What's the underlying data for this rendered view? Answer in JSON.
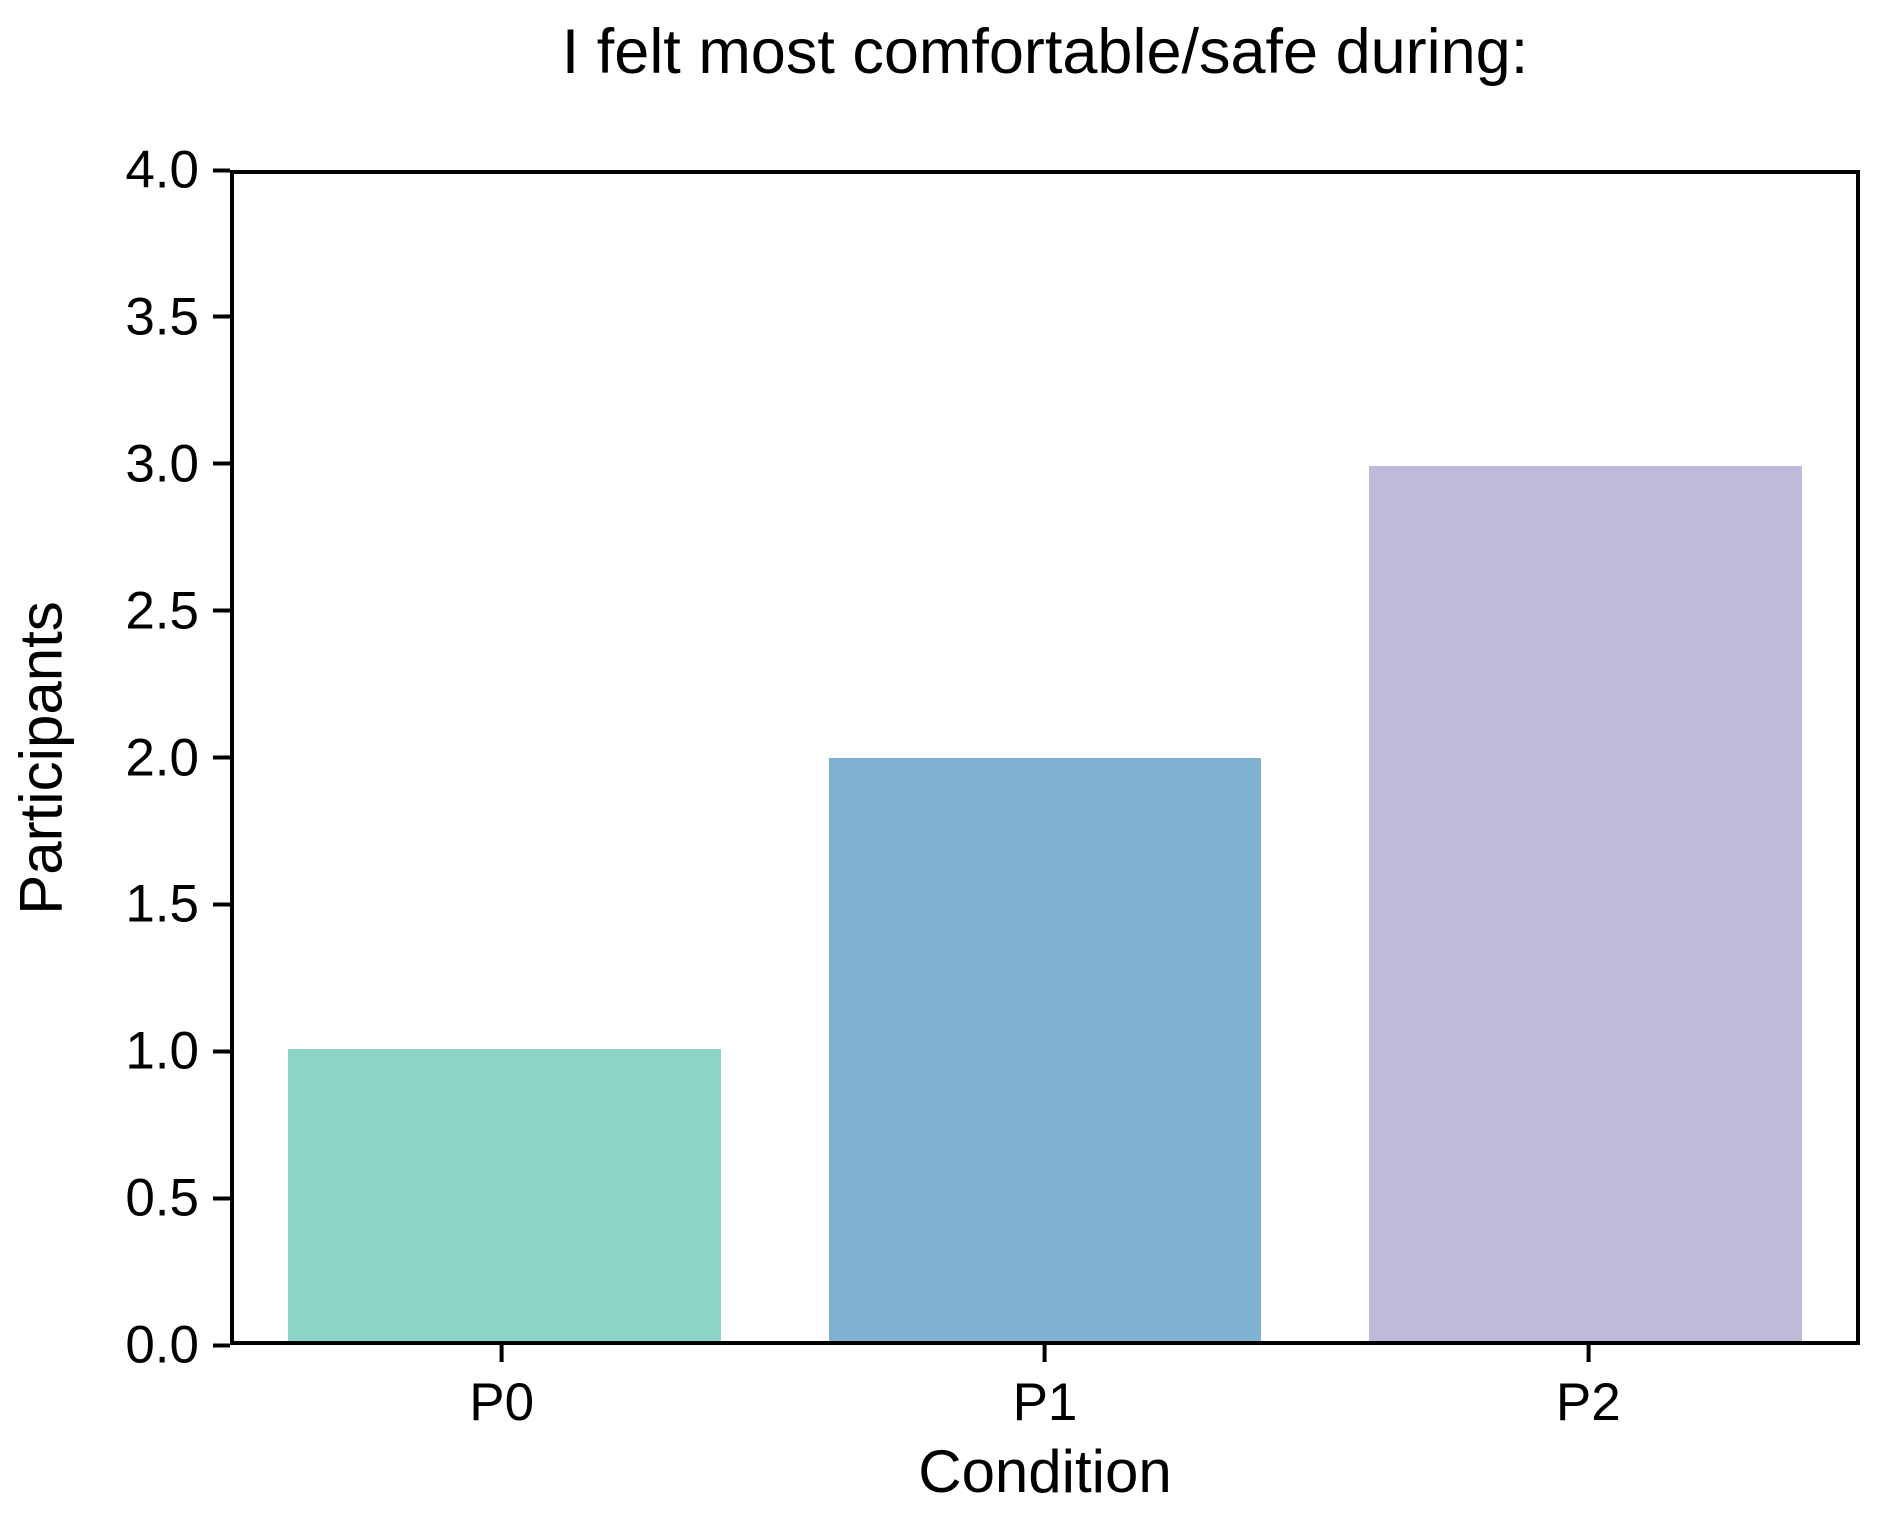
{
  "chart_data": {
    "type": "bar",
    "title": "I felt most comfortable/safe during:",
    "xlabel": "Condition",
    "ylabel": "Participants",
    "categories": [
      "P0",
      "P1",
      "P2"
    ],
    "values": [
      1,
      2,
      3
    ],
    "bar_colors": [
      "#8DD3C7",
      "#80B1D3",
      "#BEBADA"
    ],
    "ylim": [
      0,
      4
    ],
    "yticks": [
      0.0,
      0.5,
      1.0,
      1.5,
      2.0,
      2.5,
      3.0,
      3.5,
      4.0
    ],
    "ytick_labels": [
      "0.0",
      "0.5",
      "1.0",
      "1.5",
      "2.0",
      "2.5",
      "3.0",
      "3.5",
      "4.0"
    ],
    "bar_width_fraction": 0.8,
    "grid": false,
    "legend": null,
    "text_color": "#000000",
    "spine_color": "#000000",
    "background_color": "#ffffff"
  }
}
